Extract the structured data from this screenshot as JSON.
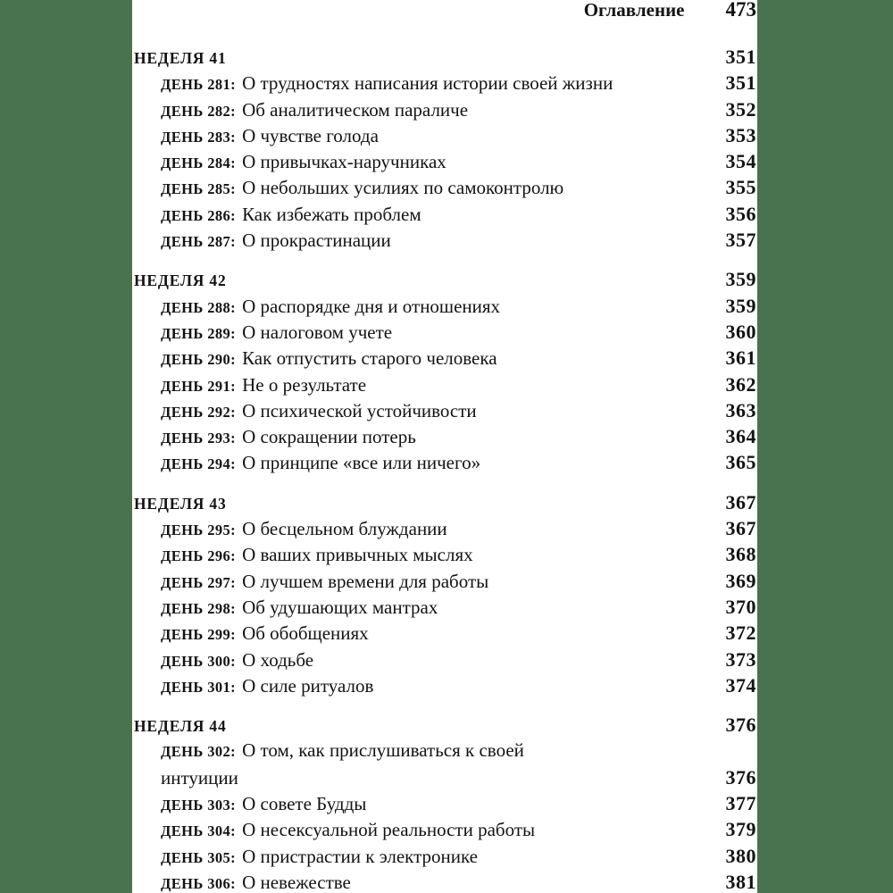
{
  "header": {
    "title": "Оглавление",
    "page": "473"
  },
  "colors": {
    "background_green": "#49724f",
    "page_white": "#ffffff",
    "text_black": "#131313"
  },
  "toc": {
    "weeks": [
      {
        "label": "НЕДЕЛЯ 41",
        "page": "351",
        "days": [
          {
            "label": "ДЕНЬ 281:",
            "title_lines": [
              "О трудностях написания истории своей жизни"
            ],
            "page": "351"
          },
          {
            "label": "ДЕНЬ 282:",
            "title_lines": [
              "Об аналитическом параличе"
            ],
            "page": "352"
          },
          {
            "label": "ДЕНЬ 283:",
            "title_lines": [
              "О чувстве голода"
            ],
            "page": "353"
          },
          {
            "label": "ДЕНЬ 284:",
            "title_lines": [
              "О привычках-наручниках"
            ],
            "page": "354"
          },
          {
            "label": "ДЕНЬ 285:",
            "title_lines": [
              "О небольших усилиях по самоконтролю"
            ],
            "page": "355"
          },
          {
            "label": "ДЕНЬ 286:",
            "title_lines": [
              "Как избежать проблем"
            ],
            "page": "356"
          },
          {
            "label": "ДЕНЬ 287:",
            "title_lines": [
              "О прокрастинации"
            ],
            "page": "357"
          }
        ]
      },
      {
        "label": "НЕДЕЛЯ 42",
        "page": "359",
        "days": [
          {
            "label": "ДЕНЬ 288:",
            "title_lines": [
              "О распорядке дня и отношениях"
            ],
            "page": "359"
          },
          {
            "label": "ДЕНЬ 289:",
            "title_lines": [
              "О налоговом учете"
            ],
            "page": "360"
          },
          {
            "label": "ДЕНЬ 290:",
            "title_lines": [
              "Как отпустить старого человека"
            ],
            "page": "361"
          },
          {
            "label": "ДЕНЬ 291:",
            "title_lines": [
              "Не о результате"
            ],
            "page": "362"
          },
          {
            "label": "ДЕНЬ 292:",
            "title_lines": [
              "О психической устойчивости"
            ],
            "page": "363"
          },
          {
            "label": "ДЕНЬ 293:",
            "title_lines": [
              "О сокращении потерь"
            ],
            "page": "364"
          },
          {
            "label": "ДЕНЬ 294:",
            "title_lines": [
              "О принципе «все или ничего»"
            ],
            "page": "365"
          }
        ]
      },
      {
        "label": "НЕДЕЛЯ 43",
        "page": "367",
        "days": [
          {
            "label": "ДЕНЬ 295:",
            "title_lines": [
              "О бесцельном блуждании"
            ],
            "page": "367"
          },
          {
            "label": "ДЕНЬ 296:",
            "title_lines": [
              "О ваших привычных мыслях"
            ],
            "page": "368"
          },
          {
            "label": "ДЕНЬ 297:",
            "title_lines": [
              "О лучшем времени для работы"
            ],
            "page": "369"
          },
          {
            "label": "ДЕНЬ 298:",
            "title_lines": [
              "Об удушающих мантрах"
            ],
            "page": "370"
          },
          {
            "label": "ДЕНЬ 299:",
            "title_lines": [
              "Об обобщениях"
            ],
            "page": "372"
          },
          {
            "label": "ДЕНЬ 300:",
            "title_lines": [
              "О ходьбе"
            ],
            "page": "373"
          },
          {
            "label": "ДЕНЬ 301:",
            "title_lines": [
              "О силе ритуалов"
            ],
            "page": "374"
          }
        ]
      },
      {
        "label": "НЕДЕЛЯ 44",
        "page": "376",
        "days": [
          {
            "label": "ДЕНЬ 302:",
            "title_lines": [
              "О том, как прислушиваться к своей",
              "интуиции"
            ],
            "page": "376"
          },
          {
            "label": "ДЕНЬ 303:",
            "title_lines": [
              "О совете Будды"
            ],
            "page": "377"
          },
          {
            "label": "ДЕНЬ 304:",
            "title_lines": [
              "О несексуальной реальности работы"
            ],
            "page": "379"
          },
          {
            "label": "ДЕНЬ 305:",
            "title_lines": [
              "О пристрастии к электронике"
            ],
            "page": "380"
          },
          {
            "label": "ДЕНЬ 306:",
            "title_lines": [
              "О невежестве"
            ],
            "page": "381"
          }
        ]
      }
    ]
  }
}
